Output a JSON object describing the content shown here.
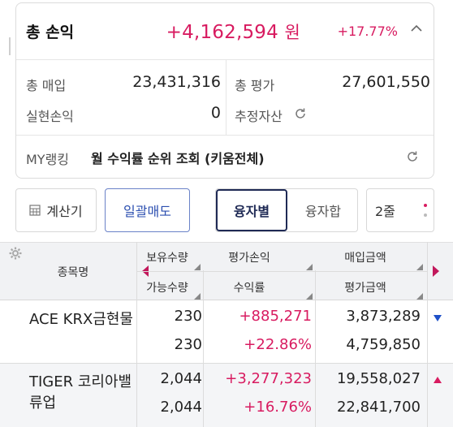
{
  "summary": {
    "title": "총 손익",
    "total_profit": "+4,162,594",
    "currency": "원",
    "total_rate": "+17.77%",
    "purchase_label": "총 매입",
    "purchase_value": "23,431,316",
    "evaluation_label": "총 평가",
    "evaluation_value": "27,601,550",
    "realized_label": "실현손익",
    "realized_value": "0",
    "estimated_label": "추정자산",
    "ranking_label": "MY랭킹",
    "ranking_text": "월 수익률 순위 조회 (키움전체)"
  },
  "toolbar": {
    "calculator_label": "계산기",
    "bulk_sell_label": "일괄매도",
    "view_options": [
      "융자별",
      "융자합"
    ],
    "active_view": "융자별",
    "lines_label": "2줄"
  },
  "table": {
    "headers": {
      "name": "종목명",
      "holding_qty": "보유수량",
      "available_qty": "가능수량",
      "eval_profit": "평가손익",
      "return_rate": "수익률",
      "purchase_amount": "매입금액",
      "eval_amount": "평가금액"
    },
    "rows": [
      {
        "name": "ACE KRX금현물",
        "holding_qty": "230",
        "available_qty": "230",
        "eval_profit": "+885,271",
        "return_rate": "+22.86%",
        "purchase_amount": "3,873,289",
        "eval_amount": "4,759,850",
        "trend": "down"
      },
      {
        "name": "TIGER 코리아밸류업",
        "holding_qty": "2,044",
        "available_qty": "2,044",
        "eval_profit": "+3,277,323",
        "return_rate": "+16.76%",
        "purchase_amount": "19,558,027",
        "eval_amount": "22,841,700",
        "trend": "up"
      }
    ]
  },
  "colors": {
    "positive": "#d81b60",
    "down_arrow": "#1e50c8",
    "up_arrow": "#d81b60",
    "active_border": "#1f2a55"
  }
}
